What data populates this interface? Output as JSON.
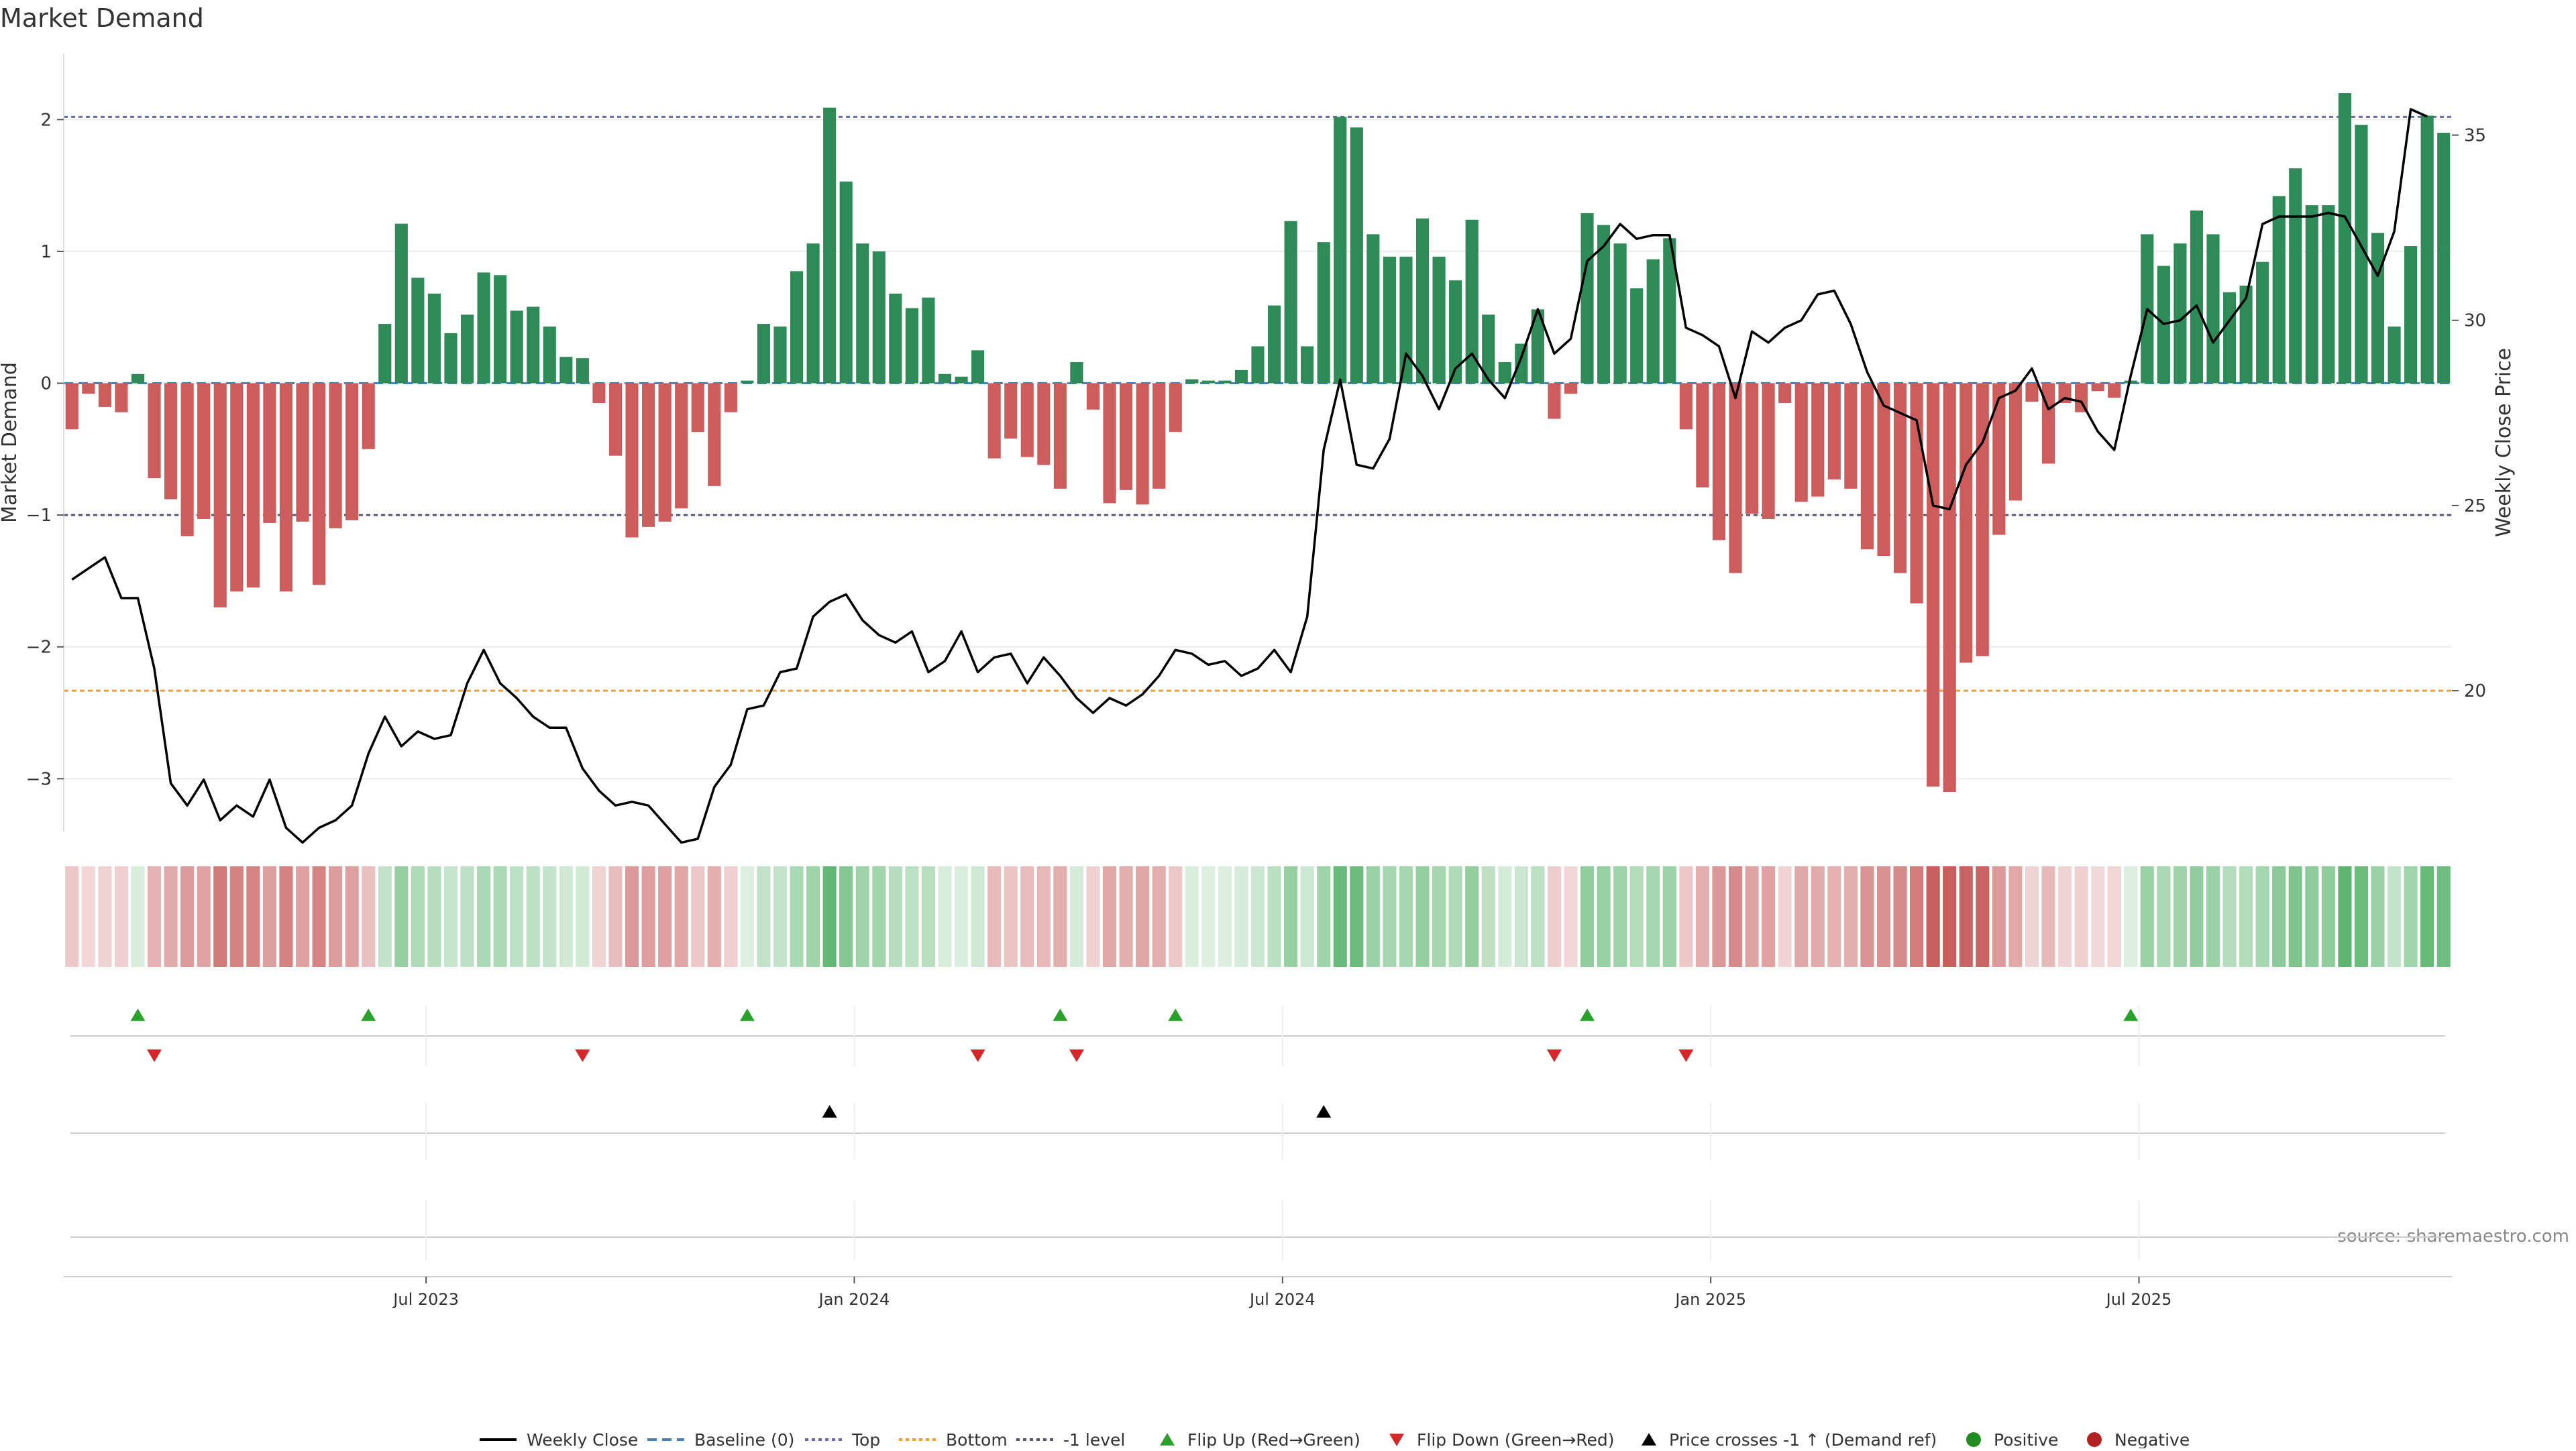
{
  "title": "Market Demand",
  "source": "source: sharemaestro.com",
  "colors": {
    "green": "#2e8b57",
    "red": "#cd5c5c",
    "price": "#000000",
    "top_line": "#6a6aa8",
    "bottom_line": "#f0a030",
    "minus1_line": "#555577",
    "baseline": "#4682b4",
    "flip_up": "#2ca02c",
    "flip_down": "#d62728",
    "cross": "#000000",
    "positive": "#228b22",
    "negative": "#b22222"
  },
  "chart_data": {
    "type": "bar",
    "title": "Market Demand",
    "ylabel": "Market Demand",
    "y2label": "Weekly Close Price",
    "ylim": [
      -3.4,
      2.5
    ],
    "y2lim": [
      16.2,
      37.2
    ],
    "yticks": [
      2,
      1,
      0,
      -1,
      -2,
      -3
    ],
    "ytick_labels": [
      "2",
      "1",
      "0",
      "−1",
      "−2",
      "−3"
    ],
    "y2ticks": [
      35,
      30,
      25,
      20
    ],
    "y2tick_labels": [
      "35",
      "30",
      "25",
      "20"
    ],
    "reference_lines": {
      "top": 2.02,
      "minus1": -1.0,
      "bottom_price": 20.0
    },
    "x_ticks": [
      {
        "label": "Jul 2023",
        "index": 22
      },
      {
        "label": "Jan 2024",
        "index": 48
      },
      {
        "label": "Jul 2024",
        "index": 74
      },
      {
        "label": "Jan 2025",
        "index": 100
      },
      {
        "label": "Jul 2025",
        "index": 126
      }
    ],
    "demand": [
      -0.35,
      -0.08,
      -0.18,
      -0.22,
      0.07,
      -0.72,
      -0.88,
      -1.16,
      -1.03,
      -1.7,
      -1.58,
      -1.55,
      -1.06,
      -1.58,
      -1.05,
      -1.53,
      -1.1,
      -1.04,
      -0.5,
      0.45,
      1.21,
      0.8,
      0.68,
      0.38,
      0.52,
      0.84,
      0.82,
      0.55,
      0.58,
      0.43,
      0.2,
      0.19,
      -0.15,
      -0.55,
      -1.17,
      -1.09,
      -1.05,
      -0.95,
      -0.37,
      -0.78,
      -0.22,
      0.02,
      0.45,
      0.43,
      0.85,
      1.06,
      2.09,
      1.53,
      1.06,
      1.0,
      0.68,
      0.57,
      0.65,
      0.07,
      0.05,
      0.25,
      -0.57,
      -0.42,
      -0.56,
      -0.62,
      -0.8,
      0.16,
      -0.2,
      -0.91,
      -0.81,
      -0.92,
      -0.8,
      -0.37,
      0.03,
      0.02,
      0.02,
      0.1,
      0.28,
      0.59,
      1.23,
      0.28,
      1.07,
      2.02,
      1.94,
      1.13,
      0.96,
      0.96,
      1.25,
      0.96,
      0.78,
      1.24,
      0.52,
      0.16,
      0.3,
      0.56,
      -0.27,
      -0.08,
      1.29,
      1.2,
      1.06,
      0.72,
      0.94,
      1.1,
      -0.35,
      -0.79,
      -1.19,
      -1.44,
      -0.99,
      -1.03,
      -0.15,
      -0.9,
      -0.86,
      -0.73,
      -0.8,
      -1.26,
      -1.31,
      -1.44,
      -1.67,
      -3.06,
      -3.1,
      -2.12,
      -2.07,
      -1.15,
      -0.89,
      -0.14,
      -0.61,
      -0.15,
      -0.22,
      -0.06,
      -0.11,
      0.02,
      1.13,
      0.89,
      1.06,
      1.31,
      1.13,
      0.69,
      0.74,
      0.92,
      1.42,
      1.63,
      1.35,
      1.35,
      2.2,
      1.96,
      1.14,
      0.43,
      1.04,
      2.03,
      1.9
    ],
    "price": [
      23.0,
      23.3,
      23.6,
      22.5,
      22.5,
      20.6,
      17.5,
      16.9,
      17.6,
      16.5,
      16.9,
      16.6,
      17.6,
      16.3,
      15.9,
      16.3,
      16.5,
      16.9,
      18.3,
      19.3,
      18.5,
      18.9,
      18.7,
      18.8,
      20.2,
      21.1,
      20.2,
      19.8,
      19.3,
      19.0,
      19.0,
      17.9,
      17.3,
      16.9,
      17.0,
      16.9,
      16.4,
      15.9,
      16.0,
      17.4,
      18.0,
      19.5,
      19.6,
      20.5,
      20.6,
      22.0,
      22.4,
      22.6,
      21.9,
      21.5,
      21.3,
      21.6,
      20.5,
      20.8,
      21.6,
      20.5,
      20.9,
      21.0,
      20.2,
      20.9,
      20.4,
      19.8,
      19.4,
      19.8,
      19.6,
      19.9,
      20.4,
      21.1,
      21.0,
      20.7,
      20.8,
      20.4,
      20.6,
      21.1,
      20.5,
      22.0,
      26.5,
      28.4,
      26.1,
      26.0,
      26.8,
      29.1,
      28.5,
      27.6,
      28.7,
      29.1,
      28.4,
      27.9,
      29.0,
      30.3,
      29.1,
      29.5,
      31.6,
      32.0,
      32.6,
      32.2,
      32.3,
      32.3,
      29.8,
      29.6,
      29.3,
      27.9,
      29.7,
      29.4,
      29.8,
      30.0,
      30.7,
      30.8,
      29.9,
      28.6,
      27.7,
      27.5,
      27.3,
      25.0,
      24.9,
      26.1,
      26.7,
      27.9,
      28.1,
      28.7,
      27.6,
      27.9,
      27.8,
      27.0,
      26.5,
      28.5,
      30.3,
      29.9,
      30.0,
      30.4,
      29.4,
      30.0,
      30.6,
      32.6,
      32.8,
      32.8,
      32.8,
      32.9,
      32.8,
      32.0,
      31.2,
      32.4,
      35.7,
      35.5
    ],
    "flip_up_indices": [
      4,
      18,
      41,
      60,
      67,
      92,
      125
    ],
    "flip_down_indices": [
      5,
      31,
      55,
      61,
      90,
      98
    ],
    "cross_up_indices": [
      46,
      76
    ],
    "legend": [
      "Weekly Close",
      "Baseline (0)",
      "Top",
      "Bottom",
      "-1 level",
      "Flip Up (Red→Green)",
      "Flip Down (Green→Red)",
      "Price crosses -1 ↑ (Demand ref)",
      "Positive",
      "Negative"
    ],
    "legend_position": "bottom"
  }
}
